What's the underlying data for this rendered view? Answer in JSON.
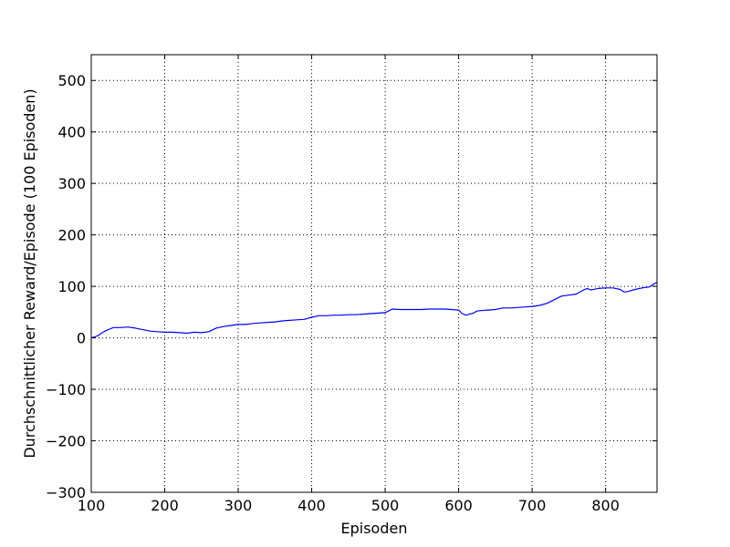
{
  "chart_data": {
    "type": "line",
    "title": "",
    "xlabel": "Episoden",
    "ylabel": "Durchschnittlicher Reward/Episode (100 Episoden)",
    "xlim": [
      100,
      870
    ],
    "ylim": [
      -300,
      550
    ],
    "x_ticks": [
      100,
      200,
      300,
      400,
      500,
      600,
      700,
      800
    ],
    "x_tick_labels": [
      "100",
      "200",
      "300",
      "400",
      "500",
      "600",
      "700",
      "800"
    ],
    "y_ticks": [
      -300,
      -200,
      -100,
      0,
      100,
      200,
      300,
      400,
      500
    ],
    "y_tick_labels": [
      "−300",
      "−200",
      "−100",
      "0",
      "100",
      "200",
      "300",
      "400",
      "500"
    ],
    "grid": true,
    "grid_style": "dotted",
    "series": [
      {
        "color": "#0000ff",
        "x": [
          100,
          105,
          110,
          115,
          120,
          125,
          130,
          140,
          150,
          160,
          170,
          180,
          190,
          200,
          210,
          220,
          230,
          240,
          250,
          260,
          270,
          280,
          290,
          300,
          310,
          320,
          330,
          340,
          350,
          360,
          370,
          380,
          390,
          400,
          410,
          420,
          430,
          440,
          450,
          460,
          470,
          480,
          490,
          500,
          510,
          520,
          530,
          540,
          550,
          560,
          570,
          580,
          590,
          600,
          605,
          610,
          615,
          620,
          625,
          630,
          640,
          650,
          660,
          670,
          680,
          690,
          700,
          710,
          720,
          730,
          740,
          750,
          760,
          770,
          775,
          780,
          790,
          800,
          810,
          820,
          825,
          830,
          840,
          850,
          860,
          865,
          870
        ],
        "y": [
          0,
          2,
          5,
          10,
          14,
          17,
          20,
          20,
          21,
          19,
          16,
          13,
          12,
          11,
          11,
          10,
          9,
          11,
          10,
          12,
          19,
          22,
          24,
          26,
          26,
          28,
          29,
          30,
          31,
          33,
          34,
          35,
          36,
          40,
          43,
          43,
          44,
          44,
          45,
          45,
          46,
          47,
          48,
          49,
          56,
          55,
          55,
          55,
          55,
          56,
          56,
          56,
          55,
          54,
          47,
          44,
          46,
          48,
          52,
          53,
          54,
          55,
          58,
          58,
          59,
          60,
          61,
          63,
          67,
          74,
          81,
          83,
          85,
          93,
          96,
          93,
          96,
          97,
          97,
          94,
          89,
          90,
          94,
          97,
          99,
          104,
          108
        ]
      }
    ]
  }
}
